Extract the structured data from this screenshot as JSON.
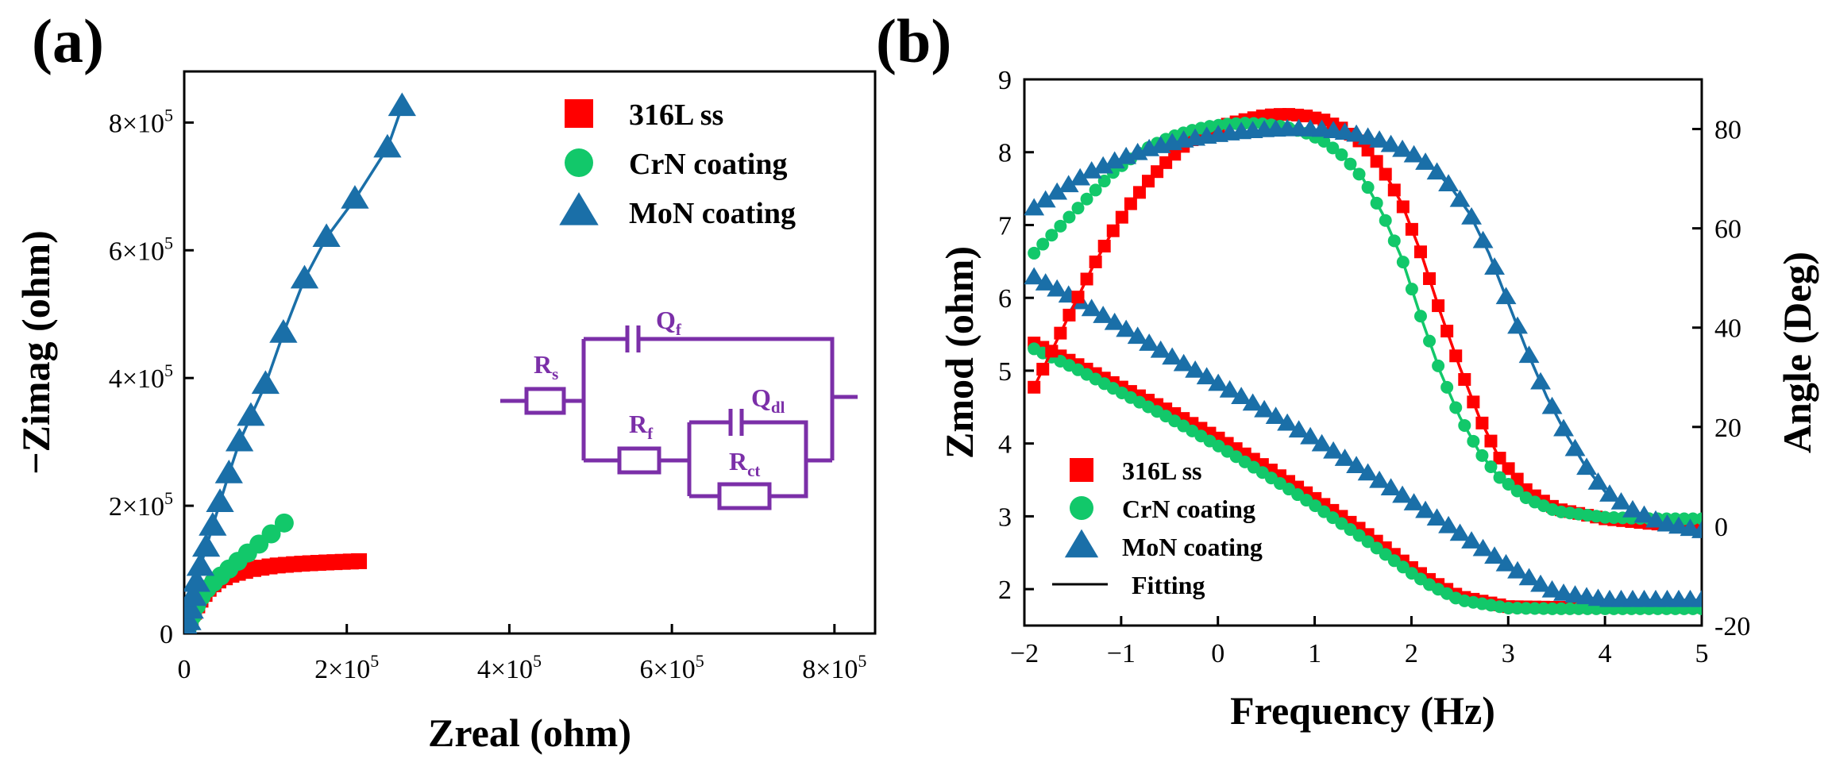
{
  "colors": {
    "s316L": "#ff0000",
    "crn": "#12c86a",
    "mon": "#1a6fa8",
    "circuit": "#7b2fa8"
  },
  "chart_data": [
    {
      "type": "scatter",
      "panel_label": "(a)",
      "xlabel": "Zreal (ohm)",
      "ylabel": "−Zimag (ohm)",
      "xlim": [
        0,
        850000
      ],
      "ylim": [
        0,
        880000
      ],
      "x_ticks": [
        0,
        200000,
        400000,
        600000,
        800000
      ],
      "x_tick_labels": [
        "0",
        "2×10",
        "4×10",
        "6×10",
        "8×10"
      ],
      "y_ticks": [
        0,
        200000,
        400000,
        600000,
        800000
      ],
      "y_tick_labels": [
        "0",
        "2×10",
        "4×10",
        "6×10",
        "8×10"
      ],
      "tick_exponent": "5",
      "legend": [
        "316L ss",
        "CrN coating",
        "MoN coating"
      ],
      "legend_position": "top-right",
      "series": [
        {
          "name": "316L ss",
          "marker": "square",
          "color_key": "s316L",
          "x": [
            3000,
            5000,
            8000,
            12000,
            16000,
            20000,
            25000,
            30000,
            36000,
            42000,
            50000,
            58000,
            66000,
            75000,
            85000,
            95000,
            105000,
            115000,
            125000,
            135000,
            145000,
            155000,
            165000,
            175000,
            185000,
            195000,
            205000,
            215000
          ],
          "y": [
            5000,
            12000,
            22000,
            34000,
            44000,
            53000,
            62000,
            70000,
            77000,
            83000,
            88000,
            92000,
            95000,
            98000,
            101000,
            103000,
            105000,
            106500,
            107500,
            108500,
            109300,
            110000,
            110600,
            111200,
            111700,
            112200,
            112700,
            113200
          ]
        },
        {
          "name": "CrN coating",
          "marker": "circle",
          "color_key": "crn",
          "x": [
            3000,
            6000,
            10000,
            15000,
            21000,
            28000,
            36000,
            45000,
            55000,
            66000,
            78000,
            92000,
            107000,
            123000
          ],
          "y": [
            5000,
            14000,
            28000,
            44000,
            58000,
            70000,
            80000,
            90000,
            101000,
            113000,
            126000,
            140000,
            156000,
            173000
          ]
        },
        {
          "name": "MoN coating",
          "marker": "triangle",
          "color_key": "mon",
          "x": [
            2000,
            4000,
            7000,
            11000,
            15000,
            20000,
            27000,
            35000,
            44000,
            55000,
            68000,
            82000,
            100000,
            122000,
            148000,
            175000,
            210000,
            250000,
            268000
          ],
          "y": [
            8000,
            20000,
            38000,
            58000,
            80000,
            105000,
            135000,
            168000,
            205000,
            250000,
            300000,
            340000,
            390000,
            470000,
            555000,
            620000,
            680000,
            760000,
            825000
          ]
        }
      ],
      "inset": {
        "type": "equivalent-circuit",
        "labels": {
          "rs": "R",
          "rs_sub": "s",
          "qf": "Q",
          "qf_sub": "f",
          "rf": "R",
          "rf_sub": "f",
          "qdl": "Q",
          "qdl_sub": "dl",
          "rct": "R",
          "rct_sub": "ct"
        }
      }
    },
    {
      "type": "line",
      "panel_label": "(b)",
      "xlabel": "Frequency (Hz)",
      "ylabel": "Zmod (ohm)",
      "ylabel_right": "Angle (Deg)",
      "xlim": [
        -2,
        5
      ],
      "ylim": [
        1.5,
        9
      ],
      "ylim_right": [
        -20,
        90
      ],
      "x_ticks": [
        -2,
        -1,
        0,
        1,
        2,
        3,
        4,
        5
      ],
      "x_tick_labels": [
        "−2",
        "−1",
        "0",
        "1",
        "2",
        "3",
        "4",
        "5"
      ],
      "y_ticks": [
        2,
        3,
        4,
        5,
        6,
        7,
        8,
        9
      ],
      "y_right_ticks": [
        -20,
        0,
        20,
        40,
        60,
        80
      ],
      "y_right_tick_labels": [
        "-20",
        "0",
        "20",
        "40",
        "60",
        "80"
      ],
      "legend": [
        "316L ss",
        "CrN coating",
        "MoN coating",
        "Fitting"
      ],
      "legend_position": "bottom-left",
      "series": [
        {
          "name": "316L ss",
          "quantity": "Zmod",
          "marker": "square",
          "color_key": "s316L",
          "x": [
            -1.9,
            -1.5,
            -1.0,
            -0.5,
            0.0,
            0.5,
            1.0,
            1.5,
            2.0,
            2.2,
            2.5,
            3.0,
            3.5,
            4.0,
            4.5,
            5.0
          ],
          "y": [
            5.38,
            5.12,
            4.78,
            4.45,
            4.08,
            3.68,
            3.25,
            2.8,
            2.3,
            2.12,
            1.9,
            1.76,
            1.75,
            1.75,
            1.75,
            1.75
          ]
        },
        {
          "name": "CrN coating",
          "quantity": "Zmod",
          "marker": "circle",
          "color_key": "crn",
          "x": [
            -1.9,
            -1.5,
            -1.0,
            -0.5,
            0.0,
            0.5,
            1.0,
            1.5,
            2.0,
            2.2,
            2.5,
            3.0,
            3.5,
            4.0,
            4.5,
            5.0
          ],
          "y": [
            5.3,
            5.05,
            4.7,
            4.35,
            3.97,
            3.57,
            3.15,
            2.7,
            2.22,
            2.05,
            1.85,
            1.74,
            1.73,
            1.73,
            1.73,
            1.73
          ]
        },
        {
          "name": "MoN coating",
          "quantity": "Zmod",
          "marker": "triangle",
          "color_key": "mon",
          "x": [
            -1.9,
            -1.5,
            -1.0,
            -0.5,
            0.0,
            0.5,
            1.0,
            1.5,
            2.0,
            2.5,
            3.0,
            3.3,
            3.5,
            4.0,
            4.5,
            5.0
          ],
          "y": [
            6.28,
            6.0,
            5.6,
            5.2,
            4.82,
            4.44,
            4.05,
            3.63,
            3.2,
            2.76,
            2.32,
            2.08,
            1.95,
            1.85,
            1.85,
            1.85
          ]
        },
        {
          "name": "316L ss",
          "quantity": "Angle",
          "marker": "square",
          "color_key": "s316L",
          "x": [
            -1.9,
            -1.7,
            -1.5,
            -1.3,
            -1.1,
            -0.9,
            -0.7,
            -0.5,
            -0.3,
            -0.1,
            0.1,
            0.3,
            0.5,
            0.7,
            0.9,
            1.1,
            1.3,
            1.5,
            1.7,
            1.9,
            2.1,
            2.3,
            2.5,
            2.7,
            2.9,
            3.2,
            3.5,
            4.0,
            4.5,
            5.0
          ],
          "y": [
            28,
            36,
            44,
            52,
            59,
            65,
            70,
            74,
            77.5,
            79.5,
            81,
            82,
            82.8,
            83,
            82.7,
            81.8,
            80,
            77,
            72,
            65,
            55,
            43,
            32,
            22,
            14,
            7,
            3.5,
            1.5,
            0.5,
            0
          ]
        },
        {
          "name": "CrN coating",
          "quantity": "Angle",
          "marker": "circle",
          "color_key": "crn",
          "x": [
            -1.9,
            -1.7,
            -1.5,
            -1.3,
            -1.1,
            -0.9,
            -0.7,
            -0.5,
            -0.3,
            -0.1,
            0.1,
            0.3,
            0.5,
            0.7,
            0.9,
            1.1,
            1.3,
            1.5,
            1.7,
            1.9,
            2.1,
            2.3,
            2.5,
            2.7,
            2.9,
            3.2,
            3.5,
            4.0,
            4.5,
            5.0
          ],
          "y": [
            55,
            59,
            63,
            67,
            71,
            74,
            76.5,
            78.3,
            79.6,
            80.5,
            81,
            81.2,
            81,
            80.4,
            79.3,
            77.5,
            74.5,
            70,
            63,
            54,
            42,
            31,
            22,
            15,
            10,
            5.5,
            3,
            1.8,
            1.5,
            1.5
          ]
        },
        {
          "name": "MoN coating",
          "quantity": "Angle",
          "marker": "triangle",
          "color_key": "mon",
          "x": [
            -1.9,
            -1.6,
            -1.3,
            -1.0,
            -0.7,
            -0.4,
            -0.1,
            0.2,
            0.5,
            0.8,
            1.1,
            1.4,
            1.7,
            2.0,
            2.2,
            2.4,
            2.6,
            2.8,
            3.0,
            3.2,
            3.4,
            3.6,
            3.8,
            4.0,
            4.3,
            4.6,
            5.0
          ],
          "y": [
            64,
            68,
            71.5,
            74,
            76,
            77.5,
            78.5,
            79.3,
            79.8,
            80,
            79.8,
            79,
            77.5,
            75,
            72.5,
            68.5,
            63,
            55,
            45,
            35,
            26,
            18.5,
            12,
            7,
            3,
            0.5,
            -1
          ]
        }
      ],
      "fitting_label": "Fitting"
    }
  ]
}
